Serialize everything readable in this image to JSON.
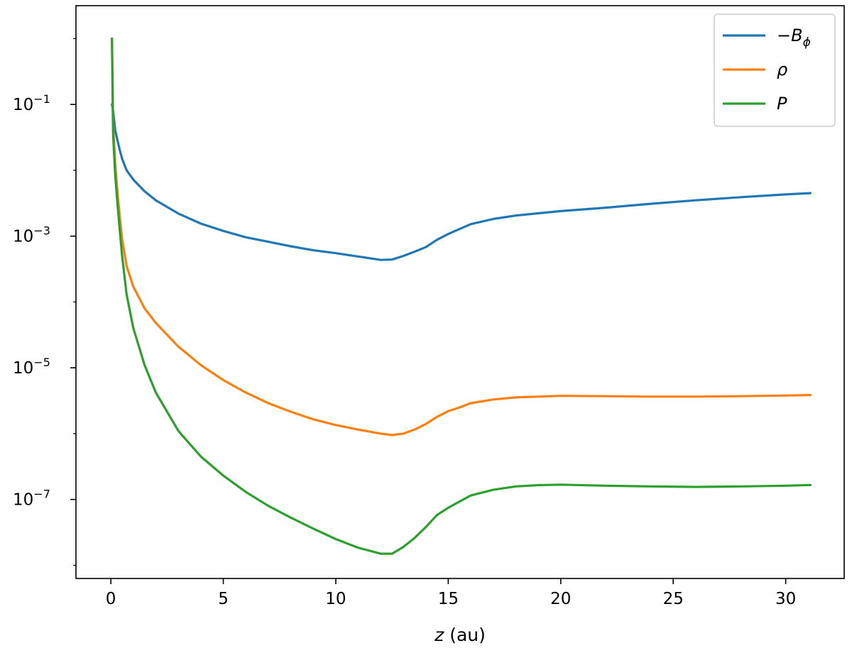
{
  "chart_data": {
    "type": "line",
    "title": "",
    "xlabel": "z (au)",
    "ylabel": "",
    "xlim": [
      -1.55,
      32.6
    ],
    "ylim_log10": [
      -8.2,
      0.5
    ],
    "yscale": "log",
    "grid": false,
    "legend_position": "top-right",
    "x_ticks": [
      {
        "value": 0,
        "label": "0"
      },
      {
        "value": 5,
        "label": "5"
      },
      {
        "value": 10,
        "label": "10"
      },
      {
        "value": 15,
        "label": "15"
      },
      {
        "value": 20,
        "label": "20"
      },
      {
        "value": 25,
        "label": "25"
      },
      {
        "value": 30,
        "label": "30"
      }
    ],
    "y_ticks": [
      {
        "exp": -1,
        "base": "10",
        "sup": "−1"
      },
      {
        "exp": -3,
        "base": "10",
        "sup": "−3"
      },
      {
        "exp": -5,
        "base": "10",
        "sup": "−5"
      },
      {
        "exp": -7,
        "base": "10",
        "sup": "−7"
      }
    ],
    "series": [
      {
        "name": "−B",
        "name_sub": "ϕ",
        "color": "#1f77b4",
        "x": [
          0.05,
          0.1,
          0.2,
          0.3,
          0.4,
          0.5,
          0.7,
          1,
          1.5,
          2,
          3,
          4,
          5,
          6,
          7,
          8,
          9,
          10,
          11,
          12,
          12.5,
          13,
          13.5,
          14,
          14.5,
          15,
          15.5,
          16,
          17,
          18,
          19,
          20,
          22,
          24,
          26,
          28,
          30,
          31.1
        ],
        "y": [
          0.1,
          0.08,
          0.04,
          0.028,
          0.02,
          0.015,
          0.01,
          0.0072,
          0.0048,
          0.0035,
          0.0022,
          0.00155,
          0.0012,
          0.00096,
          0.00082,
          0.0007,
          0.00061,
          0.00055,
          0.00049,
          0.000435,
          0.00044,
          0.0005,
          0.00058,
          0.00068,
          0.00088,
          0.00108,
          0.00128,
          0.00152,
          0.00182,
          0.00205,
          0.00222,
          0.0024,
          0.0027,
          0.0031,
          0.0035,
          0.0039,
          0.0043,
          0.0045
        ]
      },
      {
        "name": "ρ",
        "name_sub": "",
        "color": "#ff7f0e",
        "x": [
          0.05,
          0.1,
          0.2,
          0.3,
          0.4,
          0.5,
          0.7,
          1,
          1.5,
          2,
          3,
          4,
          5,
          6,
          7,
          8,
          9,
          10,
          11,
          12,
          12.5,
          13,
          13.5,
          14,
          14.5,
          15,
          15.5,
          16,
          17,
          18,
          19,
          20,
          22,
          24,
          26,
          28,
          30,
          31.1
        ],
        "y": [
          1.0,
          0.05,
          0.012,
          0.0045,
          0.0019,
          0.0009,
          0.00035,
          0.00017,
          8e-05,
          4.8e-05,
          2.1e-05,
          1.1e-05,
          6.5e-06,
          4.2e-06,
          2.9e-06,
          2.15e-06,
          1.65e-06,
          1.35e-06,
          1.15e-06,
          1e-06,
          9.5e-07,
          1e-06,
          1.15e-06,
          1.4e-06,
          1.8e-06,
          2.2e-06,
          2.5e-06,
          2.9e-06,
          3.3e-06,
          3.55e-06,
          3.65e-06,
          3.75e-06,
          3.7e-06,
          3.65e-06,
          3.65e-06,
          3.7e-06,
          3.8e-06,
          3.85e-06
        ]
      },
      {
        "name": "P",
        "name_sub": "",
        "color": "#2ca02c",
        "x": [
          0.05,
          0.1,
          0.2,
          0.3,
          0.4,
          0.5,
          0.7,
          1,
          1.5,
          2,
          3,
          4,
          5,
          6,
          7,
          8,
          9,
          10,
          11,
          12,
          12.5,
          13,
          13.5,
          14,
          14.5,
          15,
          15.5,
          16,
          17,
          18,
          19,
          20,
          22,
          24,
          26,
          28,
          30,
          31.1
        ],
        "y": [
          1.0,
          0.035,
          0.008,
          0.003,
          0.0012,
          0.0005,
          0.00013,
          4e-05,
          1.1e-05,
          4.2e-06,
          1.1e-06,
          4.5e-07,
          2.3e-07,
          1.3e-07,
          8e-08,
          5.3e-08,
          3.6e-08,
          2.5e-08,
          1.85e-08,
          1.5e-08,
          1.5e-08,
          1.9e-08,
          2.6e-08,
          3.8e-08,
          5.8e-08,
          7.5e-08,
          9.3e-08,
          1.15e-07,
          1.4e-07,
          1.58e-07,
          1.65e-07,
          1.68e-07,
          1.62e-07,
          1.58e-07,
          1.55e-07,
          1.58e-07,
          1.62e-07,
          1.66e-07
        ]
      }
    ]
  }
}
